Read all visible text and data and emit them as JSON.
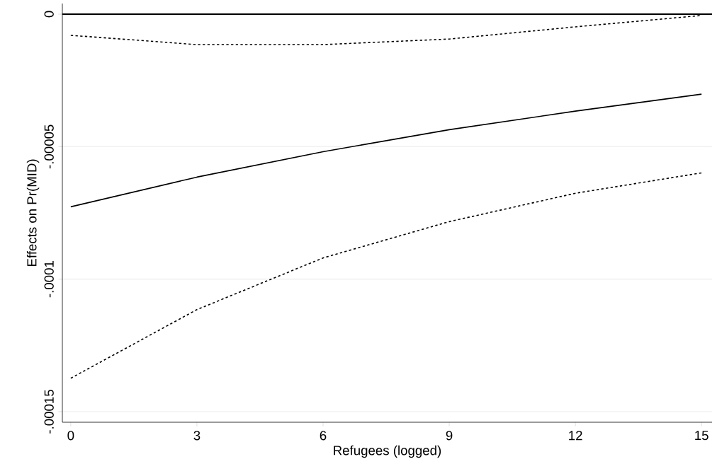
{
  "chart_data": {
    "type": "line",
    "xlabel": "Refugees (logged)",
    "ylabel": "Effects on Pr(MID)",
    "x": [
      0,
      3,
      6,
      9,
      12,
      15
    ],
    "series": [
      {
        "color": "#000000",
        "line_style": "solid",
        "values": [
          -7.27e-05,
          -6.15e-05,
          -5.19e-05,
          -4.36e-05,
          -3.66e-05,
          -3.02e-05
        ]
      },
      {
        "color": "#000000",
        "line_style": "dotted",
        "values": [
          -8e-06,
          -1.15e-05,
          -1.15e-05,
          -9.4e-06,
          -4.8e-06,
          -5e-07
        ]
      },
      {
        "color": "#000000",
        "line_style": "dotted",
        "values": [
          -0.0001374,
          -0.0001115,
          -9.2e-05,
          -7.83e-05,
          -6.76e-05,
          -5.99e-05
        ]
      }
    ],
    "xlim": [
      -0.2,
      15.25
    ],
    "ylim": [
      -0.000154,
      4e-06
    ],
    "xticks": [
      0,
      3,
      6,
      9,
      12,
      15
    ],
    "yticks": [
      {
        "value": 0,
        "label": "0"
      },
      {
        "value": -5e-05,
        "label": "-.00005"
      },
      {
        "value": -0.0001,
        "label": "-.0001"
      },
      {
        "value": -0.00015,
        "label": "-.00015"
      }
    ],
    "grid": "y",
    "ref_lines": [
      {
        "axis": "y",
        "value": 0,
        "color": "#000000"
      }
    ]
  }
}
